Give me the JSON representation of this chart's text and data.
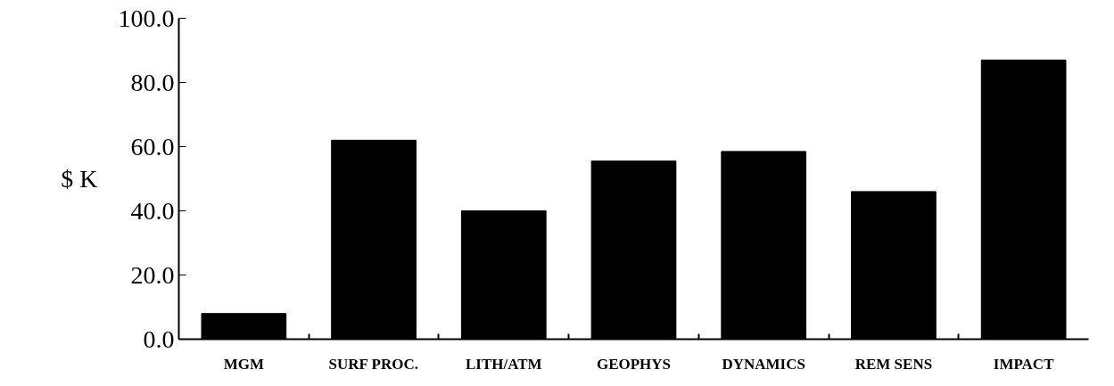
{
  "chart_data": {
    "type": "bar",
    "ylabel": "$ K",
    "categories": [
      "MGM",
      "SURF PROC.",
      "LITH/ATM",
      "GEOPHYS",
      "DYNAMICS",
      "REM SENS",
      "IMPACT"
    ],
    "values": [
      8,
      62,
      40,
      55.5,
      58.5,
      46,
      87
    ],
    "color": "#000000",
    "ylim": [
      0,
      100
    ],
    "yticks": [
      {
        "value": 0,
        "label": "0.0"
      },
      {
        "value": 20,
        "label": "20.0"
      },
      {
        "value": 40,
        "label": "40.0"
      },
      {
        "value": 60,
        "label": "60.0"
      },
      {
        "value": 80,
        "label": "80.0"
      },
      {
        "value": 100,
        "label": "100.0"
      }
    ],
    "grid": false
  }
}
